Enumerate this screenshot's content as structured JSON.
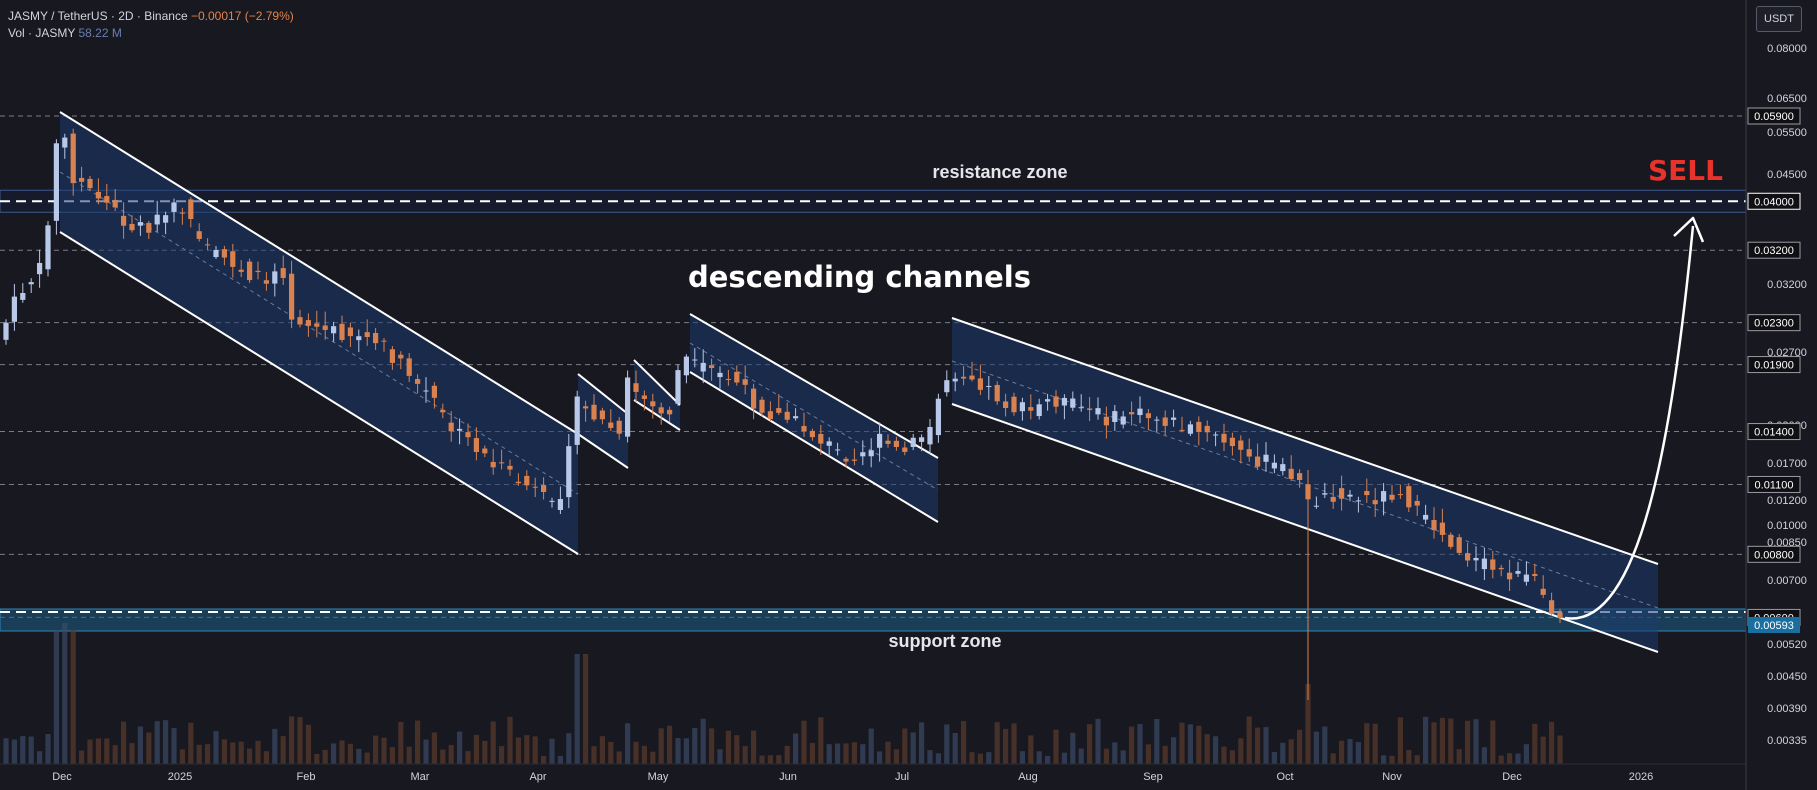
{
  "header": {
    "symbol": "JASMY / TetherUS · 2D · Binance",
    "change": "−0.00017 (−2.79%)",
    "vol_label": "Vol · JASMY",
    "vol_value": "58.22 M"
  },
  "price_axis": {
    "unit": "USDT",
    "ticks": [
      "0.08000",
      "0.06500",
      "0.05500",
      "0.04500",
      "0.03200",
      "0.02700",
      "0.02000",
      "0.01700",
      "0.01200",
      "0.01000",
      "0.00850",
      "0.00700",
      "0.00520",
      "0.00450",
      "0.00390",
      "0.00335"
    ]
  },
  "chart_data": {
    "type": "candlestick",
    "title": "JASMY / TetherUS · 2D · Binance",
    "x_labels": [
      "Dec",
      "2025",
      "Feb",
      "Mar",
      "Apr",
      "May",
      "Jun",
      "Jul",
      "Aug",
      "Sep",
      "Oct",
      "Nov",
      "Dec",
      "2026"
    ],
    "price_levels": [
      {
        "value": 0.059,
        "label": "0.05900"
      },
      {
        "value": 0.032,
        "label": "0.03200"
      },
      {
        "value": 0.023,
        "label": "0.02300"
      },
      {
        "value": 0.019,
        "label": "0.01900"
      },
      {
        "value": 0.014,
        "label": "0.01400"
      },
      {
        "value": 0.011,
        "label": "0.01100"
      },
      {
        "value": 0.008,
        "label": "0.00800"
      },
      {
        "value": 0.006,
        "label": "0.00600"
      }
    ],
    "resistance_zone": {
      "label": "resistance zone",
      "value": 0.04,
      "value_label": "0.04000"
    },
    "support_zone": {
      "label": "support zone",
      "value": 0.00593,
      "value_label": "0.00593"
    },
    "annotations": {
      "channels": "descending channels",
      "signal": "SELL"
    },
    "colors": {
      "up": "#b8c8e8",
      "down": "#d9824f",
      "channel_fill": "#1e3a6e",
      "support_fill": "#1d5f86",
      "sell": "#e8322a"
    }
  }
}
